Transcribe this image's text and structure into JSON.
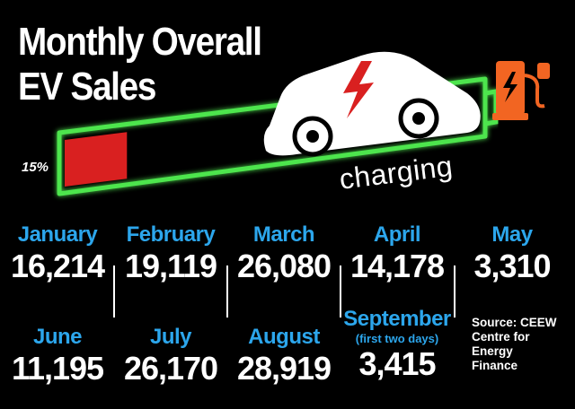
{
  "title": {
    "line1": "Monthly Overall",
    "line2": "EV Sales"
  },
  "battery": {
    "level": 0.15,
    "level_label": "15%",
    "status_label": "charging"
  },
  "colors": {
    "background": "#000000",
    "battery_outline": "#4ee54e",
    "battery_fill": "#d92020",
    "month_label": "#2ca6ec",
    "value_text": "#ffffff",
    "charger": "#f26522",
    "bolt": "#d92020"
  },
  "icons": [
    "car-icon",
    "lightning-bolt-icon",
    "ev-charger-icon"
  ],
  "chart_data": {
    "type": "table",
    "title": "Monthly Overall EV Sales",
    "categories": [
      "January",
      "February",
      "March",
      "April",
      "May",
      "June",
      "July",
      "August",
      "September"
    ],
    "values": [
      16214,
      19119,
      26080,
      14178,
      3310,
      11195,
      26170,
      28919,
      3415
    ],
    "cells": [
      {
        "month": "January",
        "value": "16,214"
      },
      {
        "month": "February",
        "value": "19,119"
      },
      {
        "month": "March",
        "value": "26,080"
      },
      {
        "month": "April",
        "value": "14,178"
      },
      {
        "month": "May",
        "value": "3,310"
      },
      {
        "month": "June",
        "value": "11,195"
      },
      {
        "month": "July",
        "value": "26,170"
      },
      {
        "month": "August",
        "value": "28,919"
      },
      {
        "month": "September",
        "note": "(first two days)",
        "value": "3,415"
      }
    ]
  },
  "source": {
    "line1": "Source: CEEW",
    "line2": "Centre for",
    "line3": "Energy",
    "line4": "Finance"
  }
}
